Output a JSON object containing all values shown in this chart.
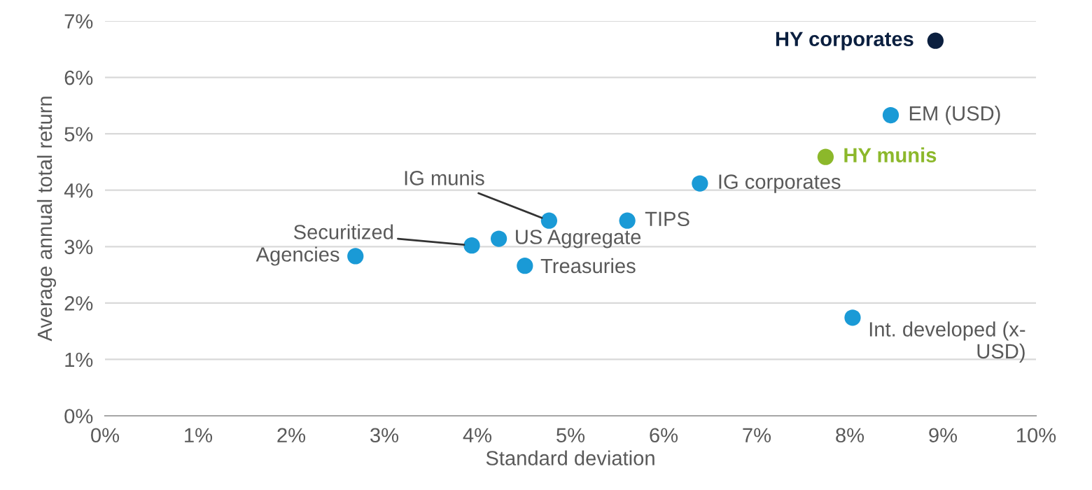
{
  "chart_data": {
    "type": "scatter",
    "xlabel": "Standard deviation",
    "ylabel": "Average annual total return",
    "series": [
      {
        "name": "HY corporates",
        "color": "#0b1f3f",
        "x": [
          8.92
        ],
        "values": [
          6.65
        ]
      },
      {
        "name": "EM (USD)",
        "color": "#1a9ad6",
        "x": [
          8.44
        ],
        "values": [
          5.33
        ]
      },
      {
        "name": "HY munis",
        "color": "#8cb82b",
        "x": [
          7.74
        ],
        "values": [
          4.59
        ]
      },
      {
        "name": "IG corporates",
        "color": "#1a9ad6",
        "x": [
          6.39
        ],
        "values": [
          4.12
        ]
      },
      {
        "name": "TIPS",
        "color": "#1a9ad6",
        "x": [
          5.61
        ],
        "values": [
          3.46
        ]
      },
      {
        "name": "IG munis",
        "color": "#1a9ad6",
        "x": [
          4.77
        ],
        "values": [
          3.46
        ]
      },
      {
        "name": "US Aggregate",
        "color": "#1a9ad6",
        "x": [
          4.23
        ],
        "values": [
          3.14
        ]
      },
      {
        "name": "Securitized",
        "color": "#1a9ad6",
        "x": [
          3.94
        ],
        "values": [
          3.02
        ]
      },
      {
        "name": "Treasuries",
        "color": "#1a9ad6",
        "x": [
          4.51
        ],
        "values": [
          2.66
        ]
      },
      {
        "name": "Agencies",
        "color": "#1a9ad6",
        "x": [
          2.69
        ],
        "values": [
          2.83
        ]
      },
      {
        "name": "Int. developed (x-\nUSD)",
        "color": "#1a9ad6",
        "x": [
          8.03
        ],
        "values": [
          1.74
        ]
      }
    ],
    "xlim": [
      0,
      10
    ],
    "ylim": [
      0,
      7
    ],
    "xticks": [
      {
        "value": 0,
        "label": "0%"
      },
      {
        "value": 1,
        "label": "1%"
      },
      {
        "value": 2,
        "label": "2%"
      },
      {
        "value": 3,
        "label": "3%"
      },
      {
        "value": 4,
        "label": "4%"
      },
      {
        "value": 5,
        "label": "5%"
      },
      {
        "value": 6,
        "label": "6%"
      },
      {
        "value": 7,
        "label": "7%"
      },
      {
        "value": 8,
        "label": "8%"
      },
      {
        "value": 9,
        "label": "9%"
      },
      {
        "value": 10,
        "label": "10%"
      }
    ],
    "yticks": [
      {
        "value": 0,
        "label": "0%"
      },
      {
        "value": 1,
        "label": "1%"
      },
      {
        "value": 2,
        "label": "2%"
      },
      {
        "value": 3,
        "label": "3%"
      },
      {
        "value": 4,
        "label": "4%"
      },
      {
        "value": 5,
        "label": "5%"
      },
      {
        "value": 6,
        "label": "6%"
      },
      {
        "value": 7,
        "label": "7%"
      }
    ],
    "grid": "y",
    "marker": "circle",
    "legend": false
  }
}
